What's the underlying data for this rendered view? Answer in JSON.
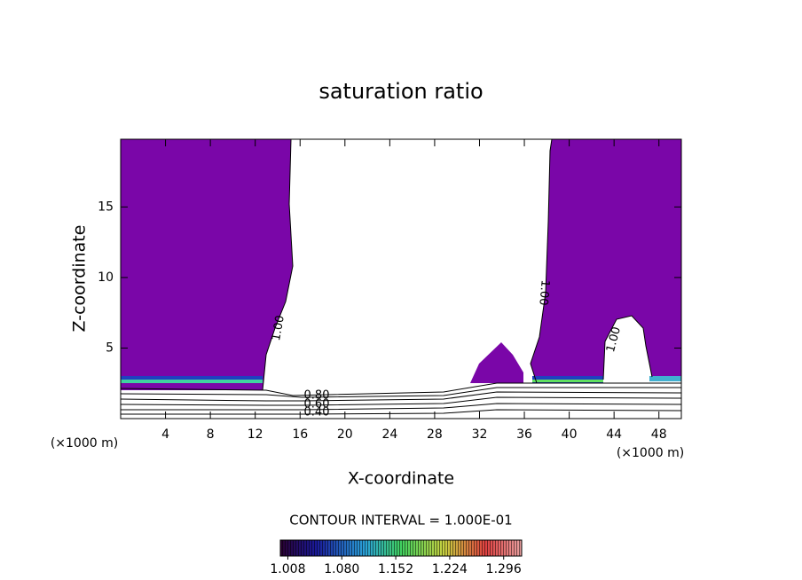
{
  "chart_data": {
    "type": "contour",
    "title": "saturation ratio",
    "x_label": "X-coordinate",
    "y_label": "Z-coordinate",
    "x_unit_labels": [
      "(×1000 m)",
      "(×1000 m)"
    ],
    "xlim": [
      0,
      50
    ],
    "ylim": [
      0,
      19.8
    ],
    "xticks": [
      4,
      8,
      12,
      16,
      20,
      24,
      28,
      32,
      36,
      40,
      44,
      48
    ],
    "yticks": [
      5,
      10,
      15
    ],
    "contour_labels": [
      "1.00",
      "1.00",
      "1.00",
      "0.80",
      "0.60",
      "0.40"
    ],
    "contour_interval": "CONTOUR INTERVAL = 1.000E-01",
    "colorbar": {
      "lim": [
        0.998,
        1.32
      ],
      "ticks": [
        1.008,
        {
          "value": 1.08,
          "label": "1.080"
        },
        1.152,
        1.224,
        1.296
      ]
    }
  }
}
